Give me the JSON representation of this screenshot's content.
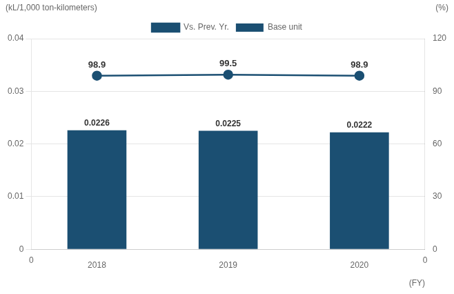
{
  "chart_data": {
    "type": "bar",
    "categories": [
      "2018",
      "2019",
      "2020"
    ],
    "x_label": "(FY)",
    "y_label": "(kL/1,000 ton-kilometers)",
    "y2_label": "(%)",
    "series": [
      {
        "name": "Base unit",
        "type": "bar",
        "color": "#1b4f72",
        "values": [
          0.0226,
          0.0225,
          0.0222
        ]
      },
      {
        "name": "Vs. Prev. Yr.",
        "type": "line",
        "color": "#1b4f72",
        "marker": "circle",
        "axis": "y2",
        "values": [
          98.9,
          99.5,
          98.9
        ]
      }
    ],
    "ylim": [
      0,
      0.04
    ],
    "yticks": [
      0,
      0.01,
      0.02,
      0.03,
      0.04
    ],
    "y2lim": [
      0,
      120
    ],
    "y2ticks": [
      0,
      30,
      60,
      90,
      120
    ],
    "grid": true,
    "legend": "top",
    "data_labels": true,
    "annotations": [
      "0",
      "0"
    ]
  }
}
